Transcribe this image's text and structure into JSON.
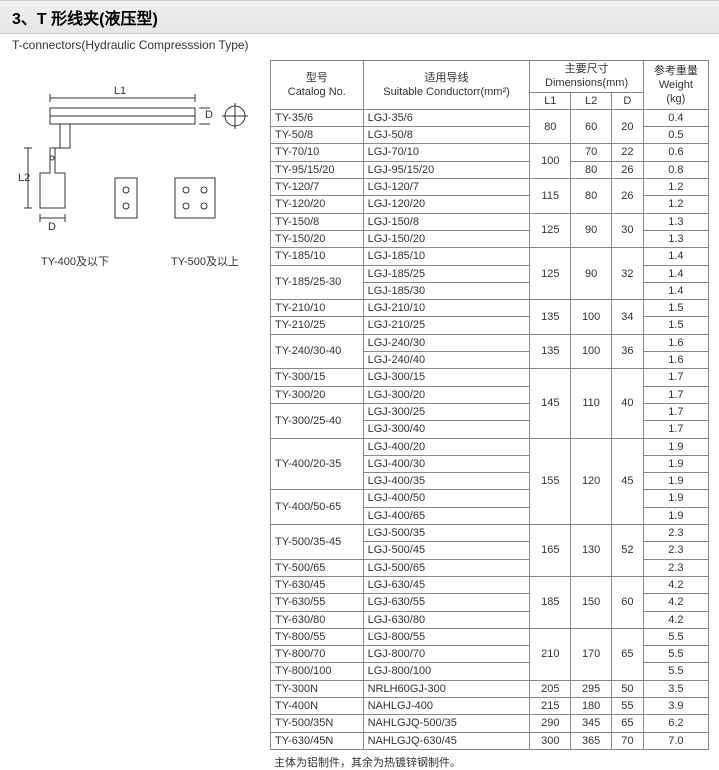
{
  "header": {
    "title_main": "3、T 形线夹(液压型)",
    "title_sub": "T-connectors(Hydraulic Compresssion Type)"
  },
  "diagram": {
    "dim_L1": "L1",
    "dim_L2": "L2",
    "dim_D_top": "D",
    "dim_D_bottom": "D",
    "label_left": "TY-400及以下",
    "label_right": "TY-500及以上",
    "stroke": "#333",
    "fill_bg": "#fff"
  },
  "table": {
    "headers": {
      "catalog_cn": "型号",
      "catalog_en": "Catalog No.",
      "conductor_cn": "适用导线",
      "conductor_en": "Suitable Conductorr(mm²)",
      "dims_cn": "主要尺寸",
      "dims_en": "Dimensions(mm)",
      "L1": "L1",
      "L2": "L2",
      "D": "D",
      "weight_cn": "参考重量",
      "weight_en": "Weight",
      "weight_unit": "(kg)"
    },
    "groups": [
      {
        "dims": {
          "L1": "80",
          "L2": "60",
          "D": "20"
        },
        "rows": [
          {
            "cat": "TY-35/6",
            "cond": "LGJ-35/6",
            "w": "0.4"
          },
          {
            "cat": "TY-50/8",
            "cond": "LGJ-50/8",
            "w": "0.5"
          }
        ]
      },
      {
        "rows": [
          {
            "cat": "TY-70/10",
            "cond": "LGJ-70/10",
            "L1": "100",
            "L2": "70",
            "D": "22",
            "w": "0.6",
            "L1span": 2
          },
          {
            "cat": "TY-95/15/20",
            "cond": "LGJ-95/15/20",
            "L2": "80",
            "D": "26",
            "w": "0.8"
          }
        ]
      },
      {
        "dims": {
          "L1": "115",
          "L2": "80",
          "D": "26"
        },
        "rows": [
          {
            "cat": "TY-120/7",
            "cond": "LGJ-120/7",
            "w": "1.2"
          },
          {
            "cat": "TY-120/20",
            "cond": "LGJ-120/20",
            "w": "1.2"
          }
        ]
      },
      {
        "dims": {
          "L1": "125",
          "L2": "90",
          "D": "30"
        },
        "rows": [
          {
            "cat": "TY-150/8",
            "cond": "LGJ-150/8",
            "w": "1.3"
          },
          {
            "cat": "TY-150/20",
            "cond": "LGJ-150/20",
            "w": "1.3"
          }
        ]
      },
      {
        "dims": {
          "L1": "125",
          "L2": "90",
          "D": "32"
        },
        "rows": [
          {
            "cat": "TY-185/10",
            "cond": "LGJ-185/10",
            "w": "1.4"
          },
          {
            "cat": "TY-185/25-30",
            "catspan": 2,
            "cond": "LGJ-185/25",
            "w": "1.4"
          },
          {
            "cond": "LGJ-185/30",
            "w": "1.4"
          }
        ]
      },
      {
        "dims": {
          "L1": "135",
          "L2": "100",
          "D": "34"
        },
        "rows": [
          {
            "cat": "TY-210/10",
            "cond": "LGJ-210/10",
            "w": "1.5"
          },
          {
            "cat": "TY-210/25",
            "cond": "LGJ-210/25",
            "w": "1.5"
          }
        ]
      },
      {
        "dims": {
          "L1": "135",
          "L2": "100",
          "D": "36"
        },
        "rows": [
          {
            "cat": "TY-240/30-40",
            "catspan": 2,
            "cond": "LGJ-240/30",
            "w": "1.6"
          },
          {
            "cond": "LGJ-240/40",
            "w": "1.6"
          }
        ]
      },
      {
        "dims": {
          "L1": "145",
          "L2": "110",
          "D": "40"
        },
        "rows": [
          {
            "cat": "TY-300/15",
            "cond": "LGJ-300/15",
            "w": "1.7"
          },
          {
            "cat": "TY-300/20",
            "cond": "LGJ-300/20",
            "w": "1.7"
          },
          {
            "cat": "TY-300/25-40",
            "catspan": 2,
            "cond": "LGJ-300/25",
            "w": "1.7"
          },
          {
            "cond": "LGJ-300/40",
            "w": "1.7"
          }
        ]
      },
      {
        "dims": {
          "L1": "155",
          "L2": "120",
          "D": "45"
        },
        "rows": [
          {
            "cat": "TY-400/20-35",
            "catspan": 3,
            "cond": "LGJ-400/20",
            "w": "1.9"
          },
          {
            "cond": "LGJ-400/30",
            "w": "1.9"
          },
          {
            "cond": "LGJ-400/35",
            "w": "1.9"
          },
          {
            "cat": "TY-400/50-65",
            "catspan": 2,
            "cond": "LGJ-400/50",
            "w": "1.9"
          },
          {
            "cond": "LGJ-400/65",
            "w": "1.9"
          }
        ]
      },
      {
        "dims": {
          "L1": "165",
          "L2": "130",
          "D": "52"
        },
        "rows": [
          {
            "cat": "TY-500/35-45",
            "catspan": 2,
            "cond": "LGJ-500/35",
            "w": "2.3"
          },
          {
            "cond": "LGJ-500/45",
            "w": "2.3"
          },
          {
            "cat": "TY-500/65",
            "cond": "LGJ-500/65",
            "w": "2.3"
          }
        ]
      },
      {
        "dims": {
          "L1": "185",
          "L2": "150",
          "D": "60"
        },
        "rows": [
          {
            "cat": "TY-630/45",
            "cond": "LGJ-630/45",
            "w": "4.2"
          },
          {
            "cat": "TY-630/55",
            "cond": "LGJ-630/55",
            "w": "4.2"
          },
          {
            "cat": "TY-630/80",
            "cond": "LGJ-630/80",
            "w": "4.2"
          }
        ]
      },
      {
        "dims": {
          "L1": "210",
          "L2": "170",
          "D": "65"
        },
        "rows": [
          {
            "cat": "TY-800/55",
            "cond": "LGJ-800/55",
            "w": "5.5"
          },
          {
            "cat": "TY-800/70",
            "cond": "LGJ-800/70",
            "w": "5.5"
          },
          {
            "cat": "TY-800/100",
            "cond": "LGJ-800/100",
            "w": "5.5"
          }
        ]
      },
      {
        "rows": [
          {
            "cat": "TY-300N",
            "cond": "NRLH60GJ-300",
            "L1": "205",
            "L2": "295",
            "D": "50",
            "w": "3.5"
          },
          {
            "cat": "TY-400N",
            "cond": "NAHLGJ-400",
            "L1": "215",
            "L2": "180",
            "D": "55",
            "w": "3.9"
          },
          {
            "cat": "TY-500/35N",
            "cond": "NAHLGJQ-500/35",
            "L1": "290",
            "L2": "345",
            "D": "65",
            "w": "6.2"
          },
          {
            "cat": "TY-630/45N",
            "cond": "NAHLGJQ-630/45",
            "L1": "300",
            "L2": "365",
            "D": "70",
            "w": "7.0"
          }
        ]
      }
    ],
    "footnote": "主体为铝制件，其余为热镀锌钢制件。"
  }
}
